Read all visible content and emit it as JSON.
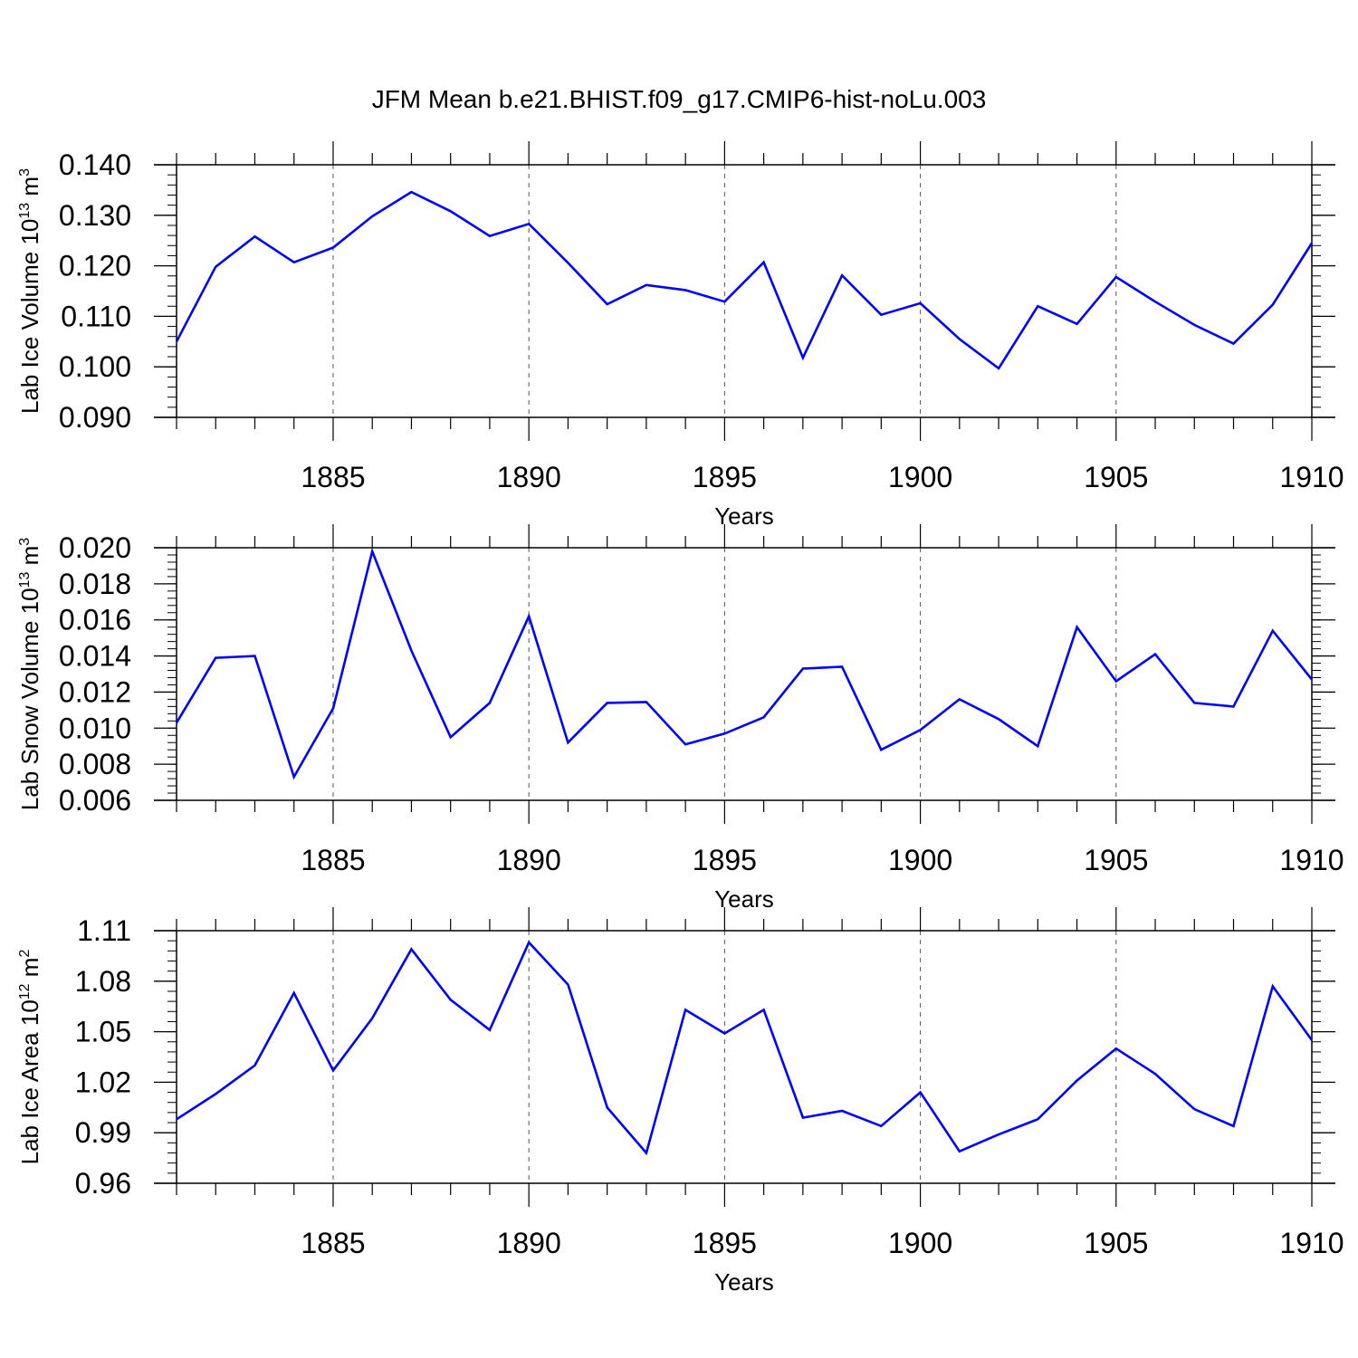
{
  "figure": {
    "title": "JFM Mean b.e21.BHIST.f09_g17.CMIP6-hist-noLu.003"
  },
  "style": {
    "line_color": "#0000ff",
    "axis_color": "#000000",
    "grid_color": "#555555"
  },
  "chart_data": [
    {
      "type": "line",
      "xlabel": "Years",
      "ylabel": {
        "text": "Lab Ice Volume 10",
        "sup_power": "13",
        "unit": " m",
        "sup_unit": "3"
      },
      "xlim": [
        1881,
        1910
      ],
      "ylim": [
        0.09,
        0.14
      ],
      "x_ticks": [
        1885,
        1890,
        1895,
        1900,
        1905,
        1910
      ],
      "y_ticks": [
        0.09,
        0.1,
        0.11,
        0.12,
        0.13,
        0.14
      ],
      "y_tick_labels": [
        "0.090",
        "0.100",
        "0.110",
        "0.120",
        "0.130",
        "0.140"
      ],
      "y_minor_step": 0.002,
      "grid": "vertical dashed at major x ticks",
      "x": [
        1881,
        1882,
        1883,
        1884,
        1885,
        1886,
        1887,
        1888,
        1889,
        1890,
        1891,
        1892,
        1893,
        1894,
        1895,
        1896,
        1897,
        1898,
        1899,
        1900,
        1901,
        1902,
        1903,
        1904,
        1905,
        1906,
        1907,
        1908,
        1909,
        1910
      ],
      "values": [
        0.105,
        0.1198,
        0.1258,
        0.1207,
        0.1236,
        0.1298,
        0.1346,
        0.1308,
        0.1259,
        0.1283,
        0.1206,
        0.1124,
        0.1162,
        0.1152,
        0.1129,
        0.1207,
        0.1018,
        0.1181,
        0.1103,
        0.1126,
        0.1055,
        0.0997,
        0.112,
        0.1085,
        0.1178,
        0.1129,
        0.1083,
        0.1046,
        0.1123,
        0.1245
      ]
    },
    {
      "type": "line",
      "xlabel": "Years",
      "ylabel": {
        "text": "Lab Snow Volume 10",
        "sup_power": "13",
        "unit": " m",
        "sup_unit": "3"
      },
      "xlim": [
        1881,
        1910
      ],
      "ylim": [
        0.006,
        0.02
      ],
      "x_ticks": [
        1885,
        1890,
        1895,
        1900,
        1905,
        1910
      ],
      "y_ticks": [
        0.006,
        0.008,
        0.01,
        0.012,
        0.014,
        0.016,
        0.018,
        0.02
      ],
      "y_tick_labels": [
        "0.006",
        "0.008",
        "0.010",
        "0.012",
        "0.014",
        "0.016",
        "0.018",
        "0.020"
      ],
      "y_minor_step": 0.0004,
      "grid": "vertical dashed at major x ticks",
      "x": [
        1881,
        1882,
        1883,
        1884,
        1885,
        1886,
        1887,
        1888,
        1889,
        1890,
        1891,
        1892,
        1893,
        1894,
        1895,
        1896,
        1897,
        1898,
        1899,
        1900,
        1901,
        1902,
        1903,
        1904,
        1905,
        1906,
        1907,
        1908,
        1909,
        1910
      ],
      "values": [
        0.0103,
        0.0139,
        0.014,
        0.0073,
        0.0111,
        0.0198,
        0.0143,
        0.0095,
        0.0114,
        0.0162,
        0.0092,
        0.0114,
        0.01145,
        0.0091,
        0.0097,
        0.0106,
        0.0133,
        0.0134,
        0.0088,
        0.0099,
        0.0116,
        0.0105,
        0.009,
        0.0156,
        0.0126,
        0.0141,
        0.0114,
        0.0112,
        0.0154,
        0.0127
      ]
    },
    {
      "type": "line",
      "xlabel": "Years",
      "ylabel": {
        "text": "Lab Ice Area 10",
        "sup_power": "12",
        "unit": " m",
        "sup_unit": "2"
      },
      "xlim": [
        1881,
        1910
      ],
      "ylim": [
        0.96,
        1.11
      ],
      "x_ticks": [
        1885,
        1890,
        1895,
        1900,
        1905,
        1910
      ],
      "y_ticks": [
        0.96,
        0.99,
        1.02,
        1.05,
        1.08,
        1.11
      ],
      "y_tick_labels": [
        "0.96",
        "0.99",
        "1.02",
        "1.05",
        "1.08",
        "1.11"
      ],
      "y_minor_step": 0.006,
      "grid": "vertical dashed at major x ticks",
      "x": [
        1881,
        1882,
        1883,
        1884,
        1885,
        1886,
        1887,
        1888,
        1889,
        1890,
        1891,
        1892,
        1893,
        1894,
        1895,
        1896,
        1897,
        1898,
        1899,
        1900,
        1901,
        1902,
        1903,
        1904,
        1905,
        1906,
        1907,
        1908,
        1909,
        1910
      ],
      "values": [
        0.998,
        1.013,
        1.03,
        1.073,
        1.027,
        1.058,
        1.099,
        1.069,
        1.051,
        1.103,
        1.078,
        1.005,
        0.978,
        1.063,
        1.049,
        1.063,
        0.999,
        1.003,
        0.994,
        1.014,
        0.979,
        0.989,
        0.998,
        1.021,
        1.04,
        1.025,
        1.004,
        0.994,
        1.077,
        1.045
      ]
    }
  ]
}
